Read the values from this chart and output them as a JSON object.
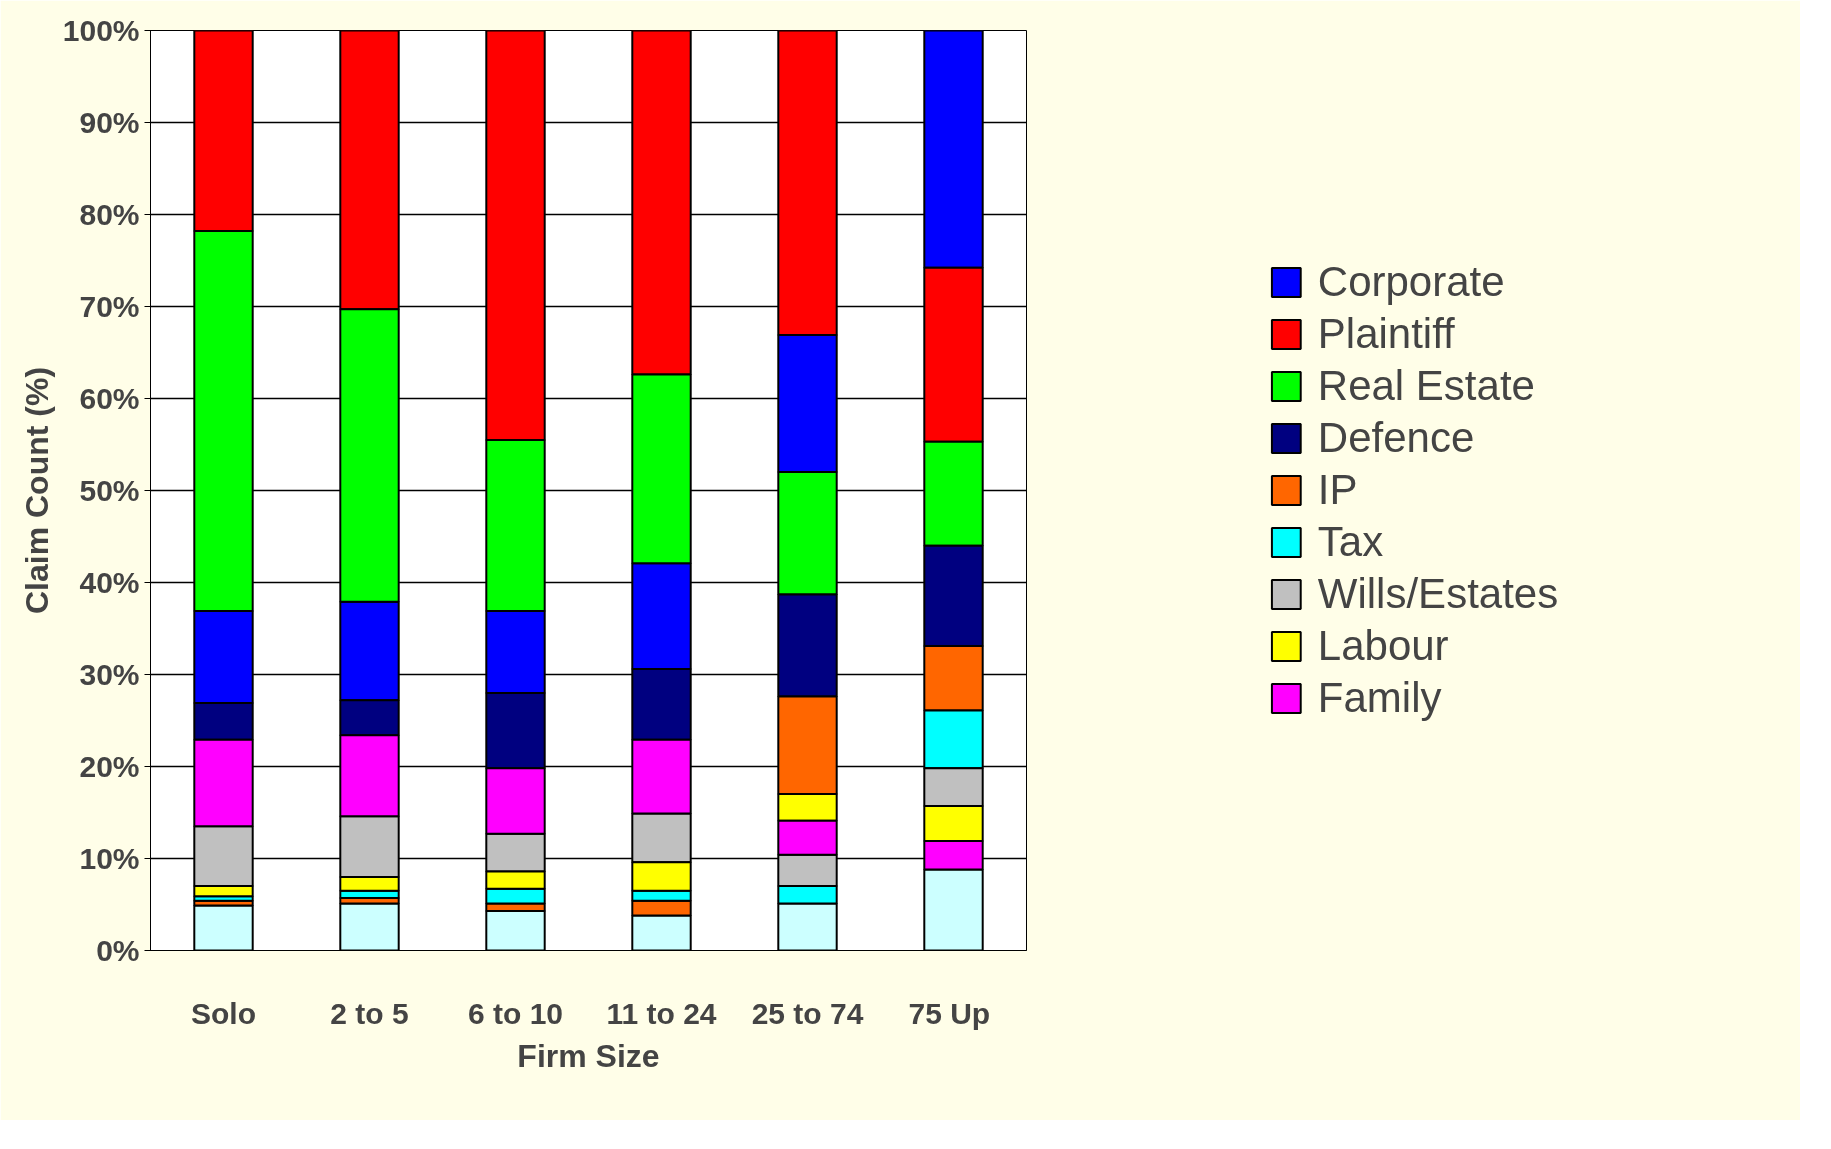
{
  "chart_data": {
    "type": "bar",
    "xlabel": "Firm Size",
    "ylabel": "Claim Count (%)",
    "categories": [
      "Solo",
      "2 to 5",
      "6 to 10",
      "11 to 24",
      "25 to 74",
      "75  Up"
    ],
    "series": [
      {
        "color": "#ccffff",
        "base": [
          0,
          0,
          0,
          0,
          0,
          0
        ],
        "values": [
          4.9,
          5.1,
          4.3,
          3.8,
          5.1,
          8.8
        ]
      },
      {
        "name": "Corporate",
        "color": "#0000ff",
        "base": [
          26.9,
          27.2,
          28.0,
          30.6,
          52.0,
          74.2
        ],
        "values": [
          10.0,
          10.7,
          8.9,
          11.5,
          14.9,
          25.8
        ]
      },
      {
        "name": "Plaintiff",
        "color": "#ff0000",
        "base": [
          78.2,
          69.7,
          55.5,
          62.6,
          66.9,
          55.3
        ],
        "values": [
          21.8,
          30.3,
          44.5,
          37.4,
          33.1,
          18.9
        ]
      },
      {
        "name": "Real Estate",
        "color": "#00ff00",
        "base": [
          36.9,
          37.9,
          36.9,
          42.1,
          38.7,
          44.0
        ],
        "values": [
          41.3,
          31.8,
          18.6,
          20.5,
          13.3,
          11.3
        ]
      },
      {
        "name": "Defence",
        "color": "#000080",
        "base": [
          22.9,
          23.4,
          19.8,
          22.9,
          27.6,
          33.1
        ],
        "values": [
          4.0,
          3.8,
          8.2,
          7.7,
          11.1,
          10.9
        ]
      },
      {
        "name": "IP",
        "color": "#ff6600",
        "base": [
          4.9,
          5.1,
          4.3,
          3.8,
          17.0,
          26.1
        ],
        "values": [
          0.5,
          0.6,
          0.8,
          1.6,
          10.6,
          7.0
        ]
      },
      {
        "name": "Tax",
        "color": "#00ffff",
        "base": [
          5.4,
          5.7,
          5.1,
          5.4,
          5.1,
          19.8
        ],
        "values": [
          0.5,
          0.8,
          1.6,
          1.1,
          1.9,
          6.3
        ]
      },
      {
        "name": "Wills/Estates",
        "color": "#c0c0c0",
        "base": [
          7.0,
          8.0,
          8.6,
          9.6,
          7.0,
          15.7
        ],
        "values": [
          6.5,
          6.6,
          4.1,
          5.3,
          3.4,
          4.1
        ]
      },
      {
        "name": "Labour",
        "color": "#ffff00",
        "base": [
          5.9,
          6.5,
          6.7,
          6.5,
          14.1,
          11.9
        ],
        "values": [
          1.1,
          1.5,
          1.9,
          3.1,
          2.9,
          3.8
        ]
      },
      {
        "name": "Family",
        "color": "#ff00ff",
        "base": [
          13.5,
          14.6,
          12.7,
          14.9,
          10.4,
          8.8
        ],
        "values": [
          9.4,
          8.8,
          7.1,
          8.0,
          3.7,
          3.1
        ]
      }
    ],
    "ylim": [
      0,
      100
    ],
    "yticks": [
      {
        "value": 0,
        "label": "0%"
      },
      {
        "value": 10,
        "label": "10%"
      },
      {
        "value": 20,
        "label": "20%"
      },
      {
        "value": 30,
        "label": "30%"
      },
      {
        "value": 40,
        "label": "40%"
      },
      {
        "value": 50,
        "label": "50%"
      },
      {
        "value": 60,
        "label": "60%"
      },
      {
        "value": 70,
        "label": "70%"
      },
      {
        "value": 80,
        "label": "80%"
      },
      {
        "value": 90,
        "label": "90%"
      },
      {
        "value": 100,
        "label": "100%"
      }
    ],
    "grid": "y",
    "legend": "right"
  }
}
